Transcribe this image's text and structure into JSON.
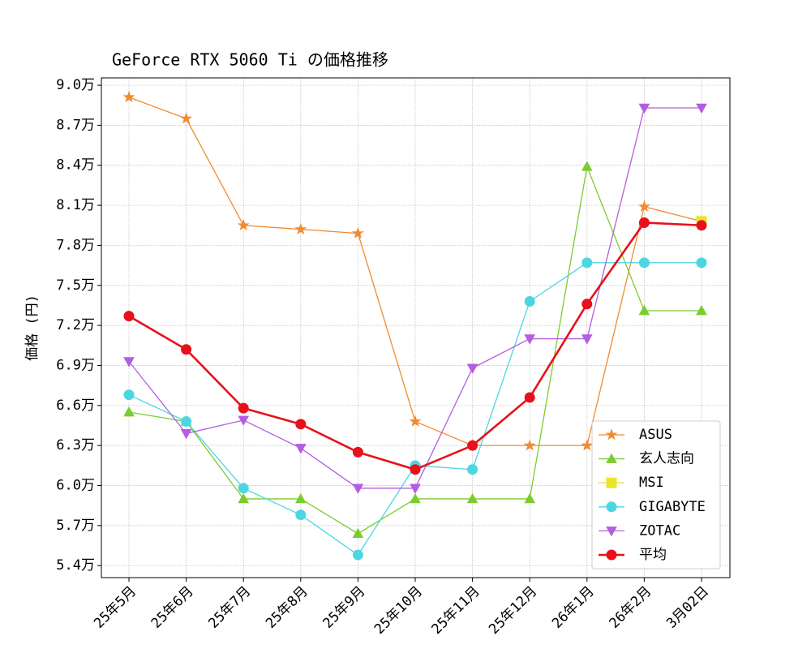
{
  "chart_data": {
    "type": "line",
    "title": "GeForce RTX 5060 Ti の価格推移",
    "y_label": "価格 (円)",
    "categories": [
      "25年5月",
      "25年6月",
      "25年7月",
      "25年8月",
      "25年9月",
      "25年10月",
      "25年11月",
      "25年12月",
      "26年1月",
      "26年2月",
      "3月02日"
    ],
    "series": [
      {
        "name": "ASUS",
        "color": "#f28a2e",
        "marker": "star",
        "linewidth": 1.3,
        "values": [
          89100,
          87500,
          79500,
          79200,
          78900,
          64800,
          63000,
          63000,
          63000,
          80900,
          79800
        ]
      },
      {
        "name": "玄人志向",
        "color": "#7ccc2f",
        "marker": "triangle-up",
        "linewidth": 1.3,
        "values": [
          65500,
          64800,
          59000,
          59000,
          56400,
          59000,
          59000,
          59000,
          83900,
          73100,
          73100
        ]
      },
      {
        "name": "MSI",
        "color": "#e9e52b",
        "marker": "square",
        "linewidth": 1.3,
        "values": [
          null,
          null,
          null,
          null,
          null,
          null,
          null,
          null,
          null,
          null,
          79800
        ]
      },
      {
        "name": "GIGABYTE",
        "color": "#4dd6e2",
        "marker": "circle",
        "linewidth": 1.3,
        "values": [
          66800,
          64800,
          59800,
          57800,
          54800,
          61500,
          61200,
          73800,
          76700,
          76700,
          76700
        ]
      },
      {
        "name": "ZOTAC",
        "color": "#b45de0",
        "marker": "triangle-down",
        "linewidth": 1.3,
        "values": [
          69300,
          63900,
          64900,
          62800,
          59800,
          59800,
          68800,
          71000,
          71000,
          88300,
          88300
        ]
      },
      {
        "name": "平均",
        "color": "#e8101a",
        "marker": "circle",
        "linewidth": 2.6,
        "values": [
          72700,
          70200,
          65800,
          64600,
          62500,
          61200,
          63000,
          66600,
          73600,
          79700,
          79500
        ]
      }
    ],
    "ylim": [
      53100,
      90550
    ],
    "yticks": [
      {
        "value": 54000,
        "label": "5.4万"
      },
      {
        "value": 57000,
        "label": "5.7万"
      },
      {
        "value": 60000,
        "label": "6.0万"
      },
      {
        "value": 63000,
        "label": "6.3万"
      },
      {
        "value": 66000,
        "label": "6.6万"
      },
      {
        "value": 69000,
        "label": "6.9万"
      },
      {
        "value": 72000,
        "label": "7.2万"
      },
      {
        "value": 75000,
        "label": "7.5万"
      },
      {
        "value": 78000,
        "label": "7.8万"
      },
      {
        "value": 81000,
        "label": "8.1万"
      },
      {
        "value": 84000,
        "label": "8.4万"
      },
      {
        "value": 87000,
        "label": "8.7万"
      },
      {
        "value": 90000,
        "label": "9.0万"
      }
    ],
    "grid": true,
    "legend": "lower right"
  }
}
